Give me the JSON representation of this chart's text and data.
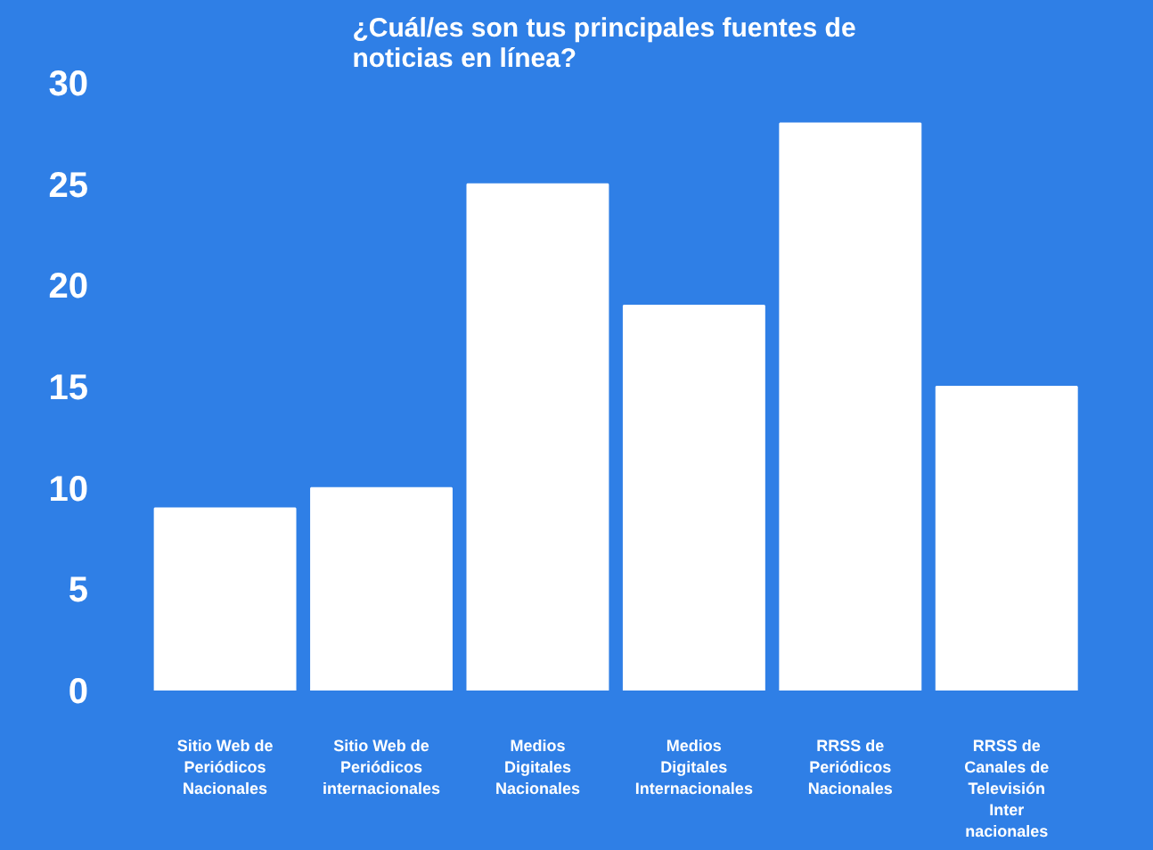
{
  "chart_data": {
    "type": "bar",
    "title": "¿Cuál/es son tus principales fuentes de noticias en línea?",
    "categories": [
      "Sitio Web de Periódicos Nacionales",
      "Sitio Web de Periódicos internacionales",
      "Medios Digitales Nacionales",
      "Medios Digitales Internacionales",
      "RRSS de Periódicos Nacionales",
      "RRSS de Canales de Televisión Inter nacionales"
    ],
    "values": [
      9,
      10,
      25,
      19,
      28,
      15
    ],
    "color": "#ffffff",
    "ylim": [
      0,
      30
    ],
    "yticks": [
      0,
      5,
      10,
      15,
      20,
      25,
      30
    ],
    "grid": false
  }
}
